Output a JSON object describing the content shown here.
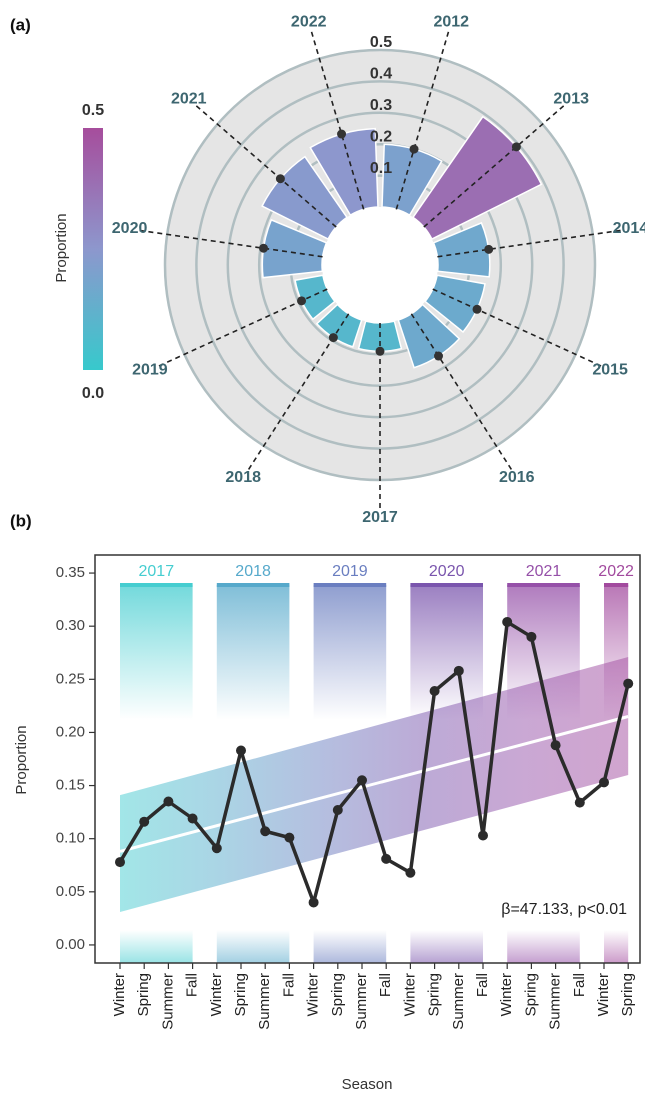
{
  "chart_data": [
    {
      "type": "polar_bar",
      "panel_label": "(a)",
      "categories": [
        "2012",
        "2013",
        "2014",
        "2015",
        "2016",
        "2017",
        "2018",
        "2019",
        "2020",
        "2021",
        "2022"
      ],
      "values": [
        0.2,
        0.39,
        0.165,
        0.155,
        0.16,
        0.09,
        0.09,
        0.09,
        0.19,
        0.235,
        0.25
      ],
      "rlim": [
        0,
        0.5
      ],
      "rticks": [
        0.1,
        0.2,
        0.3,
        0.4,
        0.5
      ],
      "colormap": [
        "#37c9cc",
        "#8d97cd",
        "#a64d9c"
      ],
      "clim": [
        0,
        0.5
      ],
      "colorbar": {
        "label": "Proportion",
        "ticks": [
          {
            "value": 0.5,
            "label": "0.5"
          },
          {
            "value": 0,
            "label": "0.0"
          }
        ]
      }
    },
    {
      "type": "line",
      "panel_label": "(b)",
      "xlabel": "Season",
      "ylabel": "Proportion",
      "categories": [
        "Winter",
        "Spring",
        "Summer",
        "Fall",
        "Winter",
        "Spring",
        "Summer",
        "Fall",
        "Winter",
        "Spring",
        "Summer",
        "Fall",
        "Winter",
        "Spring",
        "Summer",
        "Fall",
        "Winter",
        "Spring",
        "Summer",
        "Fall",
        "Winter",
        "Spring"
      ],
      "values": [
        0.078,
        0.116,
        0.135,
        0.119,
        0.091,
        0.183,
        0.107,
        0.101,
        0.04,
        0.127,
        0.155,
        0.081,
        0.068,
        0.239,
        0.258,
        0.103,
        0.304,
        0.29,
        0.188,
        0.134,
        0.153,
        0.246
      ],
      "color": "#2b2b2b",
      "groups": [
        {
          "label": "2017",
          "color": "#45cdd0"
        },
        {
          "label": "2018",
          "color": "#56a9cb"
        },
        {
          "label": "2019",
          "color": "#6a7ec0"
        },
        {
          "label": "2020",
          "color": "#7a55ad"
        },
        {
          "label": "2021",
          "color": "#9550a8"
        },
        {
          "label": "2022",
          "color": "#a24a9e"
        }
      ],
      "trend": {
        "values": [
          0.088,
          0.215
        ],
        "upper": [
          0.141,
          0.271
        ],
        "lower": [
          0.031,
          0.16
        ]
      },
      "annotation": "β=47.133, p<0.01",
      "ylim": [
        -0.017,
        0.367
      ],
      "yticks": [
        {
          "value": 0,
          "label": "0.00"
        },
        {
          "value": 0.05,
          "label": "0.05"
        },
        {
          "value": 0.1,
          "label": "0.10"
        },
        {
          "value": 0.15,
          "label": "0.15"
        },
        {
          "value": 0.2,
          "label": "0.20"
        },
        {
          "value": 0.25,
          "label": "0.25"
        },
        {
          "value": 0.3,
          "label": "0.30"
        },
        {
          "value": 0.35,
          "label": "0.35"
        }
      ]
    }
  ]
}
